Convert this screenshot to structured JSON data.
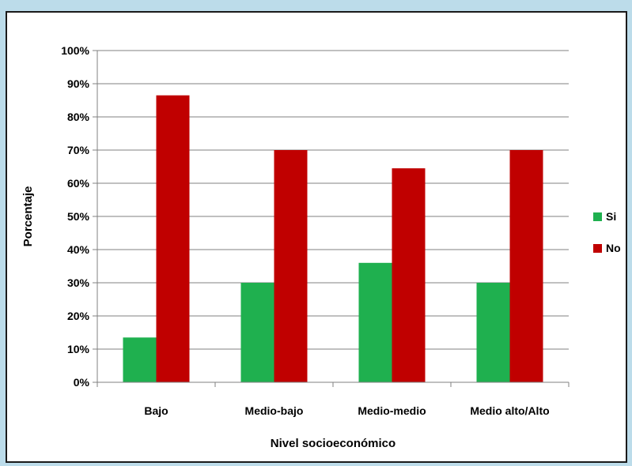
{
  "chart_data": {
    "type": "bar",
    "title": "",
    "xlabel": "Nivel socioeconómico",
    "ylabel": "Porcentaje",
    "categories": [
      "Bajo",
      "Medio-bajo",
      "Medio-medio",
      "Medio alto/Alto"
    ],
    "series": [
      {
        "name": "Si",
        "color": "#1fb04f",
        "values": [
          13.5,
          30,
          36,
          30
        ]
      },
      {
        "name": "No",
        "color": "#c00000",
        "values": [
          86.5,
          70,
          64.5,
          70
        ]
      }
    ],
    "ylim": [
      0,
      100
    ],
    "yticks": [
      "0%",
      "10%",
      "20%",
      "30%",
      "40%",
      "50%",
      "60%",
      "70%",
      "80%",
      "90%",
      "100%"
    ],
    "grid": true,
    "legend": "right"
  }
}
